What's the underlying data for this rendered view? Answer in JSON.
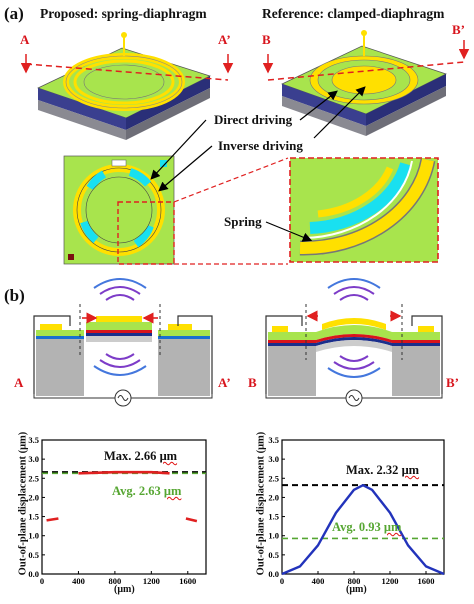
{
  "panel_a": {
    "label": "(a)",
    "proposed_title": "Proposed: spring-diaphragm",
    "reference_title": "Reference: clamped-diaphragm",
    "cut_proposed_start": "A",
    "cut_proposed_end": "A’",
    "cut_reference_start": "B",
    "cut_reference_end": "B’",
    "direct_driving": "Direct driving",
    "inverse_driving": "Inverse driving",
    "spring": "Spring"
  },
  "panel_b": {
    "label": "(b)",
    "section_a_start": "A",
    "section_a_end": "A’",
    "section_b_start": "B",
    "section_b_end": "B’"
  },
  "colors": {
    "diaphragm_green": "#a8e44d",
    "electrode_yellow": "#ffe000",
    "inverse_cyan": "#19e0f0",
    "substrate_blue": "#1a2e8c",
    "accent_red": "#e02020",
    "curve_blue": "#2233bb",
    "avg_green": "#56a632"
  },
  "chart_data": [
    {
      "type": "line",
      "ylabel": "Out-of-plane displacement (μm)",
      "xlabel": "(μm)",
      "xlim": [
        0,
        1800
      ],
      "ylim": [
        0,
        3.5
      ],
      "xticks": [
        "0",
        "400",
        "800",
        "1200",
        "1600"
      ],
      "yticks": [
        "0.0",
        "0.5",
        "1.0",
        "1.5",
        "2.0",
        "2.5",
        "3.0",
        "3.5"
      ],
      "max_label": "Max. 2.66",
      "avg_label": "Avg. 2.63",
      "unit": "μm",
      "max_value": 2.66,
      "avg_value": 2.63,
      "series": [
        {
          "color": "#e02020",
          "x": [
            50,
            180,
            400,
            800,
            1200,
            1400,
            1580,
            1700
          ],
          "y": [
            1.4,
            1.45,
            2.63,
            2.66,
            2.66,
            2.63,
            1.45,
            1.38
          ]
        }
      ]
    },
    {
      "type": "line",
      "ylabel": "Out-of-plane displacement (μm)",
      "xlabel": "(μm)",
      "xlim": [
        0,
        1800
      ],
      "ylim": [
        0,
        3.5
      ],
      "xticks": [
        "0",
        "400",
        "800",
        "1200",
        "1600"
      ],
      "yticks": [
        "0.0",
        "0.5",
        "1.0",
        "1.5",
        "2.0",
        "2.5",
        "3.0",
        "3.5"
      ],
      "max_label": "Max. 2.32",
      "avg_label": "Avg. 0.93",
      "unit": "μm",
      "max_value": 2.32,
      "avg_value": 0.93,
      "series": [
        {
          "color": "#2233bb",
          "x": [
            0,
            200,
            400,
            600,
            800,
            900,
            1000,
            1200,
            1400,
            1600,
            1800
          ],
          "y": [
            0.0,
            0.2,
            0.75,
            1.6,
            2.2,
            2.32,
            2.2,
            1.6,
            0.75,
            0.2,
            0.0
          ]
        }
      ]
    }
  ]
}
